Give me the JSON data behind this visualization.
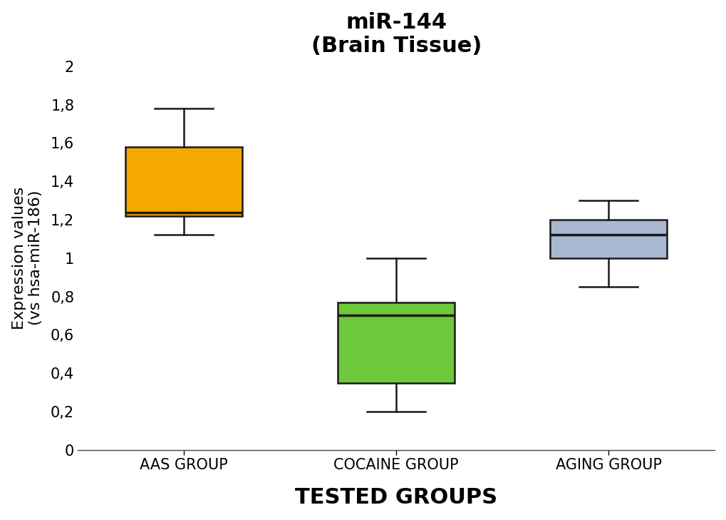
{
  "title_line1": "miR-144",
  "title_line2": "(Brain Tissue)",
  "xlabel": "TESTED GROUPS",
  "ylabel": "Expression values\n(vs hsa-miR-186)",
  "categories": [
    "AAS GROUP",
    "COCAINE GROUP",
    "AGING GROUP"
  ],
  "box_data": [
    {
      "whislo": 1.12,
      "q1": 1.22,
      "med": 1.235,
      "q3": 1.58,
      "whishi": 1.78
    },
    {
      "whislo": 0.2,
      "q1": 0.35,
      "med": 0.7,
      "q3": 0.77,
      "whishi": 1.0
    },
    {
      "whislo": 0.85,
      "q1": 1.0,
      "med": 1.12,
      "q3": 1.2,
      "whishi": 1.3
    }
  ],
  "box_colors": [
    "#F5A800",
    "#6DC93A",
    "#A8B8D0"
  ],
  "box_edge_color": "#1a1a1a",
  "median_color": "#1a1a1a",
  "whisker_color": "#1a1a1a",
  "cap_color": "#1a1a1a",
  "ylim": [
    0,
    2.0
  ],
  "yticks": [
    0,
    0.2,
    0.4,
    0.6,
    0.8,
    1.0,
    1.2,
    1.4,
    1.6,
    1.8,
    2.0
  ],
  "ytick_labels": [
    "0",
    "0,2",
    "0,4",
    "0,6",
    "0,8",
    "1",
    "1,2",
    "1,4",
    "1,6",
    "1,8",
    "2"
  ],
  "background_color": "#ffffff",
  "title_fontsize": 22,
  "axis_label_fontsize": 16,
  "tick_fontsize": 15,
  "xlabel_fontsize": 22,
  "box_width": 0.55,
  "linewidth": 1.8,
  "positions": [
    1,
    2,
    3
  ]
}
